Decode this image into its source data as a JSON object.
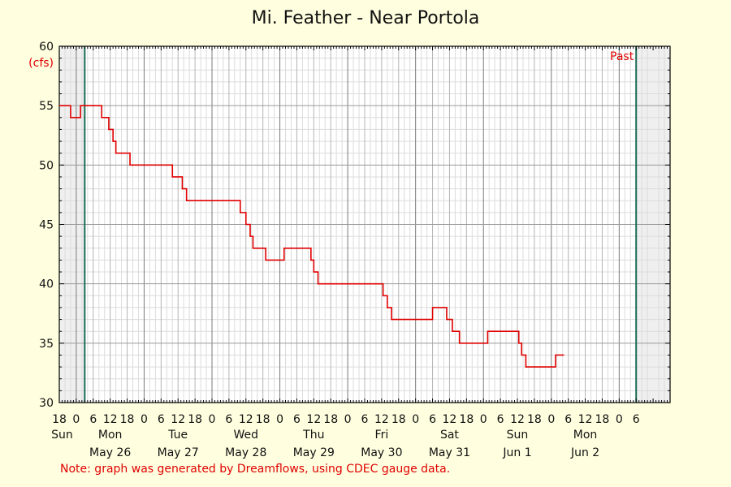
{
  "chart_data": {
    "type": "line",
    "title": "Mi. Feather - Near Portola",
    "ylabel": "(cfs)",
    "xlabel": "",
    "ylim": [
      30,
      60
    ],
    "yticks": [
      30,
      35,
      40,
      45,
      50,
      55,
      60
    ],
    "x_range_hours": [
      -6,
      210
    ],
    "past_label": "Past",
    "past_range_hours": [
      3,
      198
    ],
    "hour_ticks": [
      {
        "h": -6,
        "label": "18"
      },
      {
        "h": 0,
        "label": "0"
      },
      {
        "h": 6,
        "label": "6"
      },
      {
        "h": 12,
        "label": "12"
      },
      {
        "h": 18,
        "label": "18"
      },
      {
        "h": 24,
        "label": "0"
      },
      {
        "h": 30,
        "label": "6"
      },
      {
        "h": 36,
        "label": "12"
      },
      {
        "h": 42,
        "label": "18"
      },
      {
        "h": 48,
        "label": "0"
      },
      {
        "h": 54,
        "label": "6"
      },
      {
        "h": 60,
        "label": "12"
      },
      {
        "h": 66,
        "label": "18"
      },
      {
        "h": 72,
        "label": "0"
      },
      {
        "h": 78,
        "label": "6"
      },
      {
        "h": 84,
        "label": "12"
      },
      {
        "h": 90,
        "label": "18"
      },
      {
        "h": 96,
        "label": "0"
      },
      {
        "h": 102,
        "label": "6"
      },
      {
        "h": 108,
        "label": "12"
      },
      {
        "h": 114,
        "label": "18"
      },
      {
        "h": 120,
        "label": "0"
      },
      {
        "h": 126,
        "label": "6"
      },
      {
        "h": 132,
        "label": "12"
      },
      {
        "h": 138,
        "label": "18"
      },
      {
        "h": 144,
        "label": "0"
      },
      {
        "h": 150,
        "label": "6"
      },
      {
        "h": 156,
        "label": "12"
      },
      {
        "h": 162,
        "label": "18"
      },
      {
        "h": 168,
        "label": "0"
      },
      {
        "h": 174,
        "label": "6"
      },
      {
        "h": 180,
        "label": "12"
      },
      {
        "h": 186,
        "label": "18"
      },
      {
        "h": 192,
        "label": "0"
      },
      {
        "h": 198,
        "label": "6"
      }
    ],
    "day_labels": [
      {
        "h": -5,
        "weekday": "Sun",
        "date": ""
      },
      {
        "h": 12,
        "weekday": "Mon",
        "date": "May 26"
      },
      {
        "h": 36,
        "weekday": "Tue",
        "date": "May 27"
      },
      {
        "h": 60,
        "weekday": "Wed",
        "date": "May 28"
      },
      {
        "h": 84,
        "weekday": "Thu",
        "date": "May 29"
      },
      {
        "h": 108,
        "weekday": "Fri",
        "date": "May 30"
      },
      {
        "h": 132,
        "weekday": "Sat",
        "date": "May 31"
      },
      {
        "h": 156,
        "weekday": "Sun",
        "date": "Jun 1"
      },
      {
        "h": 180,
        "weekday": "Mon",
        "date": "Jun 2"
      }
    ],
    "series": [
      {
        "color": "#e00000",
        "points": [
          [
            -7,
            55
          ],
          [
            -2,
            55
          ],
          [
            -2,
            54
          ],
          [
            1.5,
            54
          ],
          [
            1.5,
            55
          ],
          [
            9,
            55
          ],
          [
            9,
            54
          ],
          [
            11.5,
            54
          ],
          [
            11.5,
            53
          ],
          [
            13,
            53
          ],
          [
            13,
            52
          ],
          [
            14,
            52
          ],
          [
            14,
            51
          ],
          [
            19,
            51
          ],
          [
            19,
            50
          ],
          [
            34,
            50
          ],
          [
            34,
            49
          ],
          [
            37.5,
            49
          ],
          [
            37.5,
            48
          ],
          [
            39,
            48
          ],
          [
            39,
            47
          ],
          [
            58,
            47
          ],
          [
            58,
            46
          ],
          [
            60,
            46
          ],
          [
            60,
            45
          ],
          [
            61.5,
            45
          ],
          [
            61.5,
            44
          ],
          [
            62.5,
            44
          ],
          [
            62.5,
            43
          ],
          [
            67,
            43
          ],
          [
            67,
            42
          ],
          [
            73.5,
            42
          ],
          [
            73.5,
            43
          ],
          [
            83,
            43
          ],
          [
            83,
            42
          ],
          [
            84,
            42
          ],
          [
            84,
            41
          ],
          [
            85.5,
            41
          ],
          [
            85.5,
            40
          ],
          [
            108.5,
            40
          ],
          [
            108.5,
            39
          ],
          [
            110,
            39
          ],
          [
            110,
            38
          ],
          [
            111.5,
            38
          ],
          [
            111.5,
            37
          ],
          [
            126,
            37
          ],
          [
            126,
            38
          ],
          [
            131,
            38
          ],
          [
            131,
            37
          ],
          [
            133,
            37
          ],
          [
            133,
            36
          ],
          [
            135.5,
            36
          ],
          [
            135.5,
            35
          ],
          [
            145.5,
            35
          ],
          [
            145.5,
            36
          ],
          [
            156.5,
            36
          ],
          [
            156.5,
            35
          ],
          [
            157.5,
            35
          ],
          [
            157.5,
            34
          ],
          [
            159,
            34
          ],
          [
            159,
            33
          ],
          [
            169.5,
            33
          ],
          [
            169.5,
            34
          ],
          [
            172.5,
            34
          ]
        ]
      }
    ]
  },
  "note": "Note: graph was generated by Dreamflows, using CDEC gauge data."
}
